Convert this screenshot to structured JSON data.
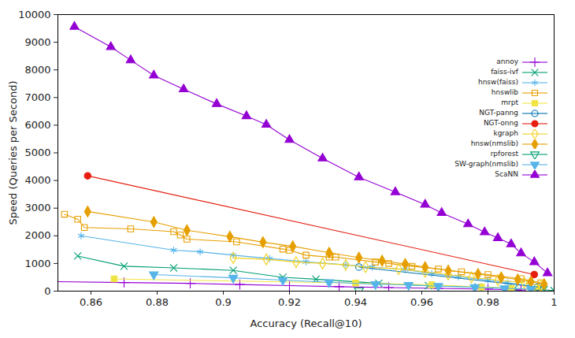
{
  "chart_data": {
    "type": "line",
    "xlabel": "Accuracy (Recall@10)",
    "ylabel": "Speed (Queries per Second)",
    "xlim": [
      0.85,
      1
    ],
    "ylim": [
      0,
      10000
    ],
    "xticks": [
      0.86,
      0.88,
      0.9,
      0.92,
      0.94,
      0.96,
      0.98,
      1
    ],
    "yticks": [
      0,
      1000,
      2000,
      3000,
      4000,
      5000,
      6000,
      7000,
      8000,
      9000,
      10000
    ],
    "grid": false,
    "legend": "top-right",
    "series": [
      {
        "name": "annoy",
        "color": "#9400d3",
        "marker": "plus",
        "x": [
          0.85,
          0.87,
          0.89,
          0.905,
          0.92,
          0.935,
          0.95,
          0.965,
          0.98,
          0.99
        ],
        "values": [
          340,
          310,
          280,
          240,
          200,
          160,
          130,
          100,
          70,
          40
        ]
      },
      {
        "name": "faiss-ivf",
        "color": "#009e73",
        "marker": "x",
        "x": [
          0.856,
          0.87,
          0.885,
          0.903,
          0.918,
          0.928,
          0.947,
          0.962,
          0.977,
          0.988,
          0.997,
          1.0
        ],
        "values": [
          1270,
          900,
          840,
          750,
          500,
          430,
          280,
          200,
          150,
          100,
          50,
          20
        ]
      },
      {
        "name": "hnsw(faiss)",
        "color": "#56b4e9",
        "marker": "asterisk",
        "x": [
          0.857,
          0.885,
          0.893,
          0.903,
          0.914,
          0.925,
          0.937,
          0.945,
          0.955,
          0.963,
          0.971,
          0.98,
          0.986,
          0.993
        ],
        "values": [
          2000,
          1480,
          1420,
          1300,
          1180,
          1060,
          950,
          870,
          780,
          630,
          520,
          400,
          300,
          200
        ]
      },
      {
        "name": "hnswlib",
        "color": "#e69f00",
        "marker": "square-open",
        "x": [
          0.852,
          0.856,
          0.858,
          0.872,
          0.885,
          0.887,
          0.889,
          0.904,
          0.918,
          0.92,
          0.925,
          0.932,
          0.934,
          0.946,
          0.95,
          0.957,
          0.965,
          0.972,
          0.98,
          0.99,
          0.996
        ],
        "values": [
          2780,
          2600,
          2300,
          2250,
          2150,
          2030,
          1880,
          1780,
          1520,
          1480,
          1300,
          1230,
          1230,
          1050,
          1000,
          900,
          800,
          700,
          600,
          450,
          300
        ]
      },
      {
        "name": "mrpt",
        "color": "#f0e442",
        "marker": "square",
        "x": [
          0.867,
          0.94,
          0.963,
          0.978,
          0.987,
          0.995
        ],
        "values": [
          440,
          290,
          230,
          150,
          100,
          60
        ]
      },
      {
        "name": "NGT-panng",
        "color": "#0072b2",
        "marker": "circle-open",
        "x": [
          0.941,
          0.995
        ],
        "values": [
          870,
          150
        ]
      },
      {
        "name": "NGT-onng",
        "color": "#e51e10",
        "marker": "circle",
        "x": [
          0.859,
          0.994
        ],
        "values": [
          4170,
          600
        ]
      },
      {
        "name": "kgraph",
        "color": "#f0d020",
        "marker": "diamond-open",
        "x": [
          0.903,
          0.913,
          0.922,
          0.93,
          0.937,
          0.943,
          0.953,
          0.961,
          0.968,
          0.975,
          0.983,
          0.991,
          0.996
        ],
        "values": [
          1200,
          1150,
          1050,
          1000,
          950,
          870,
          800,
          700,
          600,
          500,
          400,
          300,
          200
        ]
      },
      {
        "name": "hnsw(nmslib)",
        "color": "#e69f00",
        "marker": "diamond",
        "x": [
          0.859,
          0.879,
          0.889,
          0.902,
          0.912,
          0.921,
          0.932,
          0.941,
          0.948,
          0.955,
          0.961,
          0.968,
          0.977,
          0.984,
          0.989,
          0.993,
          0.997
        ],
        "values": [
          2880,
          2500,
          2200,
          1970,
          1770,
          1620,
          1390,
          1210,
          1100,
          980,
          870,
          740,
          620,
          500,
          420,
          340,
          250
        ]
      },
      {
        "name": "rpforest",
        "color": "#009e73",
        "marker": "triangle-down-open",
        "x": [
          0.941
        ],
        "values": [
          20
        ]
      },
      {
        "name": "SW-graph(nmslib)",
        "color": "#56b4e9",
        "marker": "triangle-down",
        "x": [
          0.879,
          0.903,
          0.918,
          0.932,
          0.946,
          0.956,
          0.965,
          0.976,
          0.985,
          0.993
        ],
        "values": [
          600,
          480,
          400,
          320,
          250,
          220,
          180,
          140,
          100,
          70
        ]
      },
      {
        "name": "ScaNN",
        "color": "#9400d3",
        "marker": "triangle",
        "x": [
          0.855,
          0.866,
          0.872,
          0.879,
          0.888,
          0.898,
          0.907,
          0.913,
          0.92,
          0.93,
          0.941,
          0.952,
          0.961,
          0.966,
          0.974,
          0.979,
          0.983,
          0.987,
          0.99,
          0.994,
          0.998
        ],
        "values": [
          9560,
          8830,
          8350,
          7800,
          7300,
          6770,
          6330,
          6020,
          5470,
          4800,
          4120,
          3580,
          3130,
          2830,
          2420,
          2130,
          1920,
          1700,
          1370,
          1050,
          650
        ]
      }
    ]
  }
}
